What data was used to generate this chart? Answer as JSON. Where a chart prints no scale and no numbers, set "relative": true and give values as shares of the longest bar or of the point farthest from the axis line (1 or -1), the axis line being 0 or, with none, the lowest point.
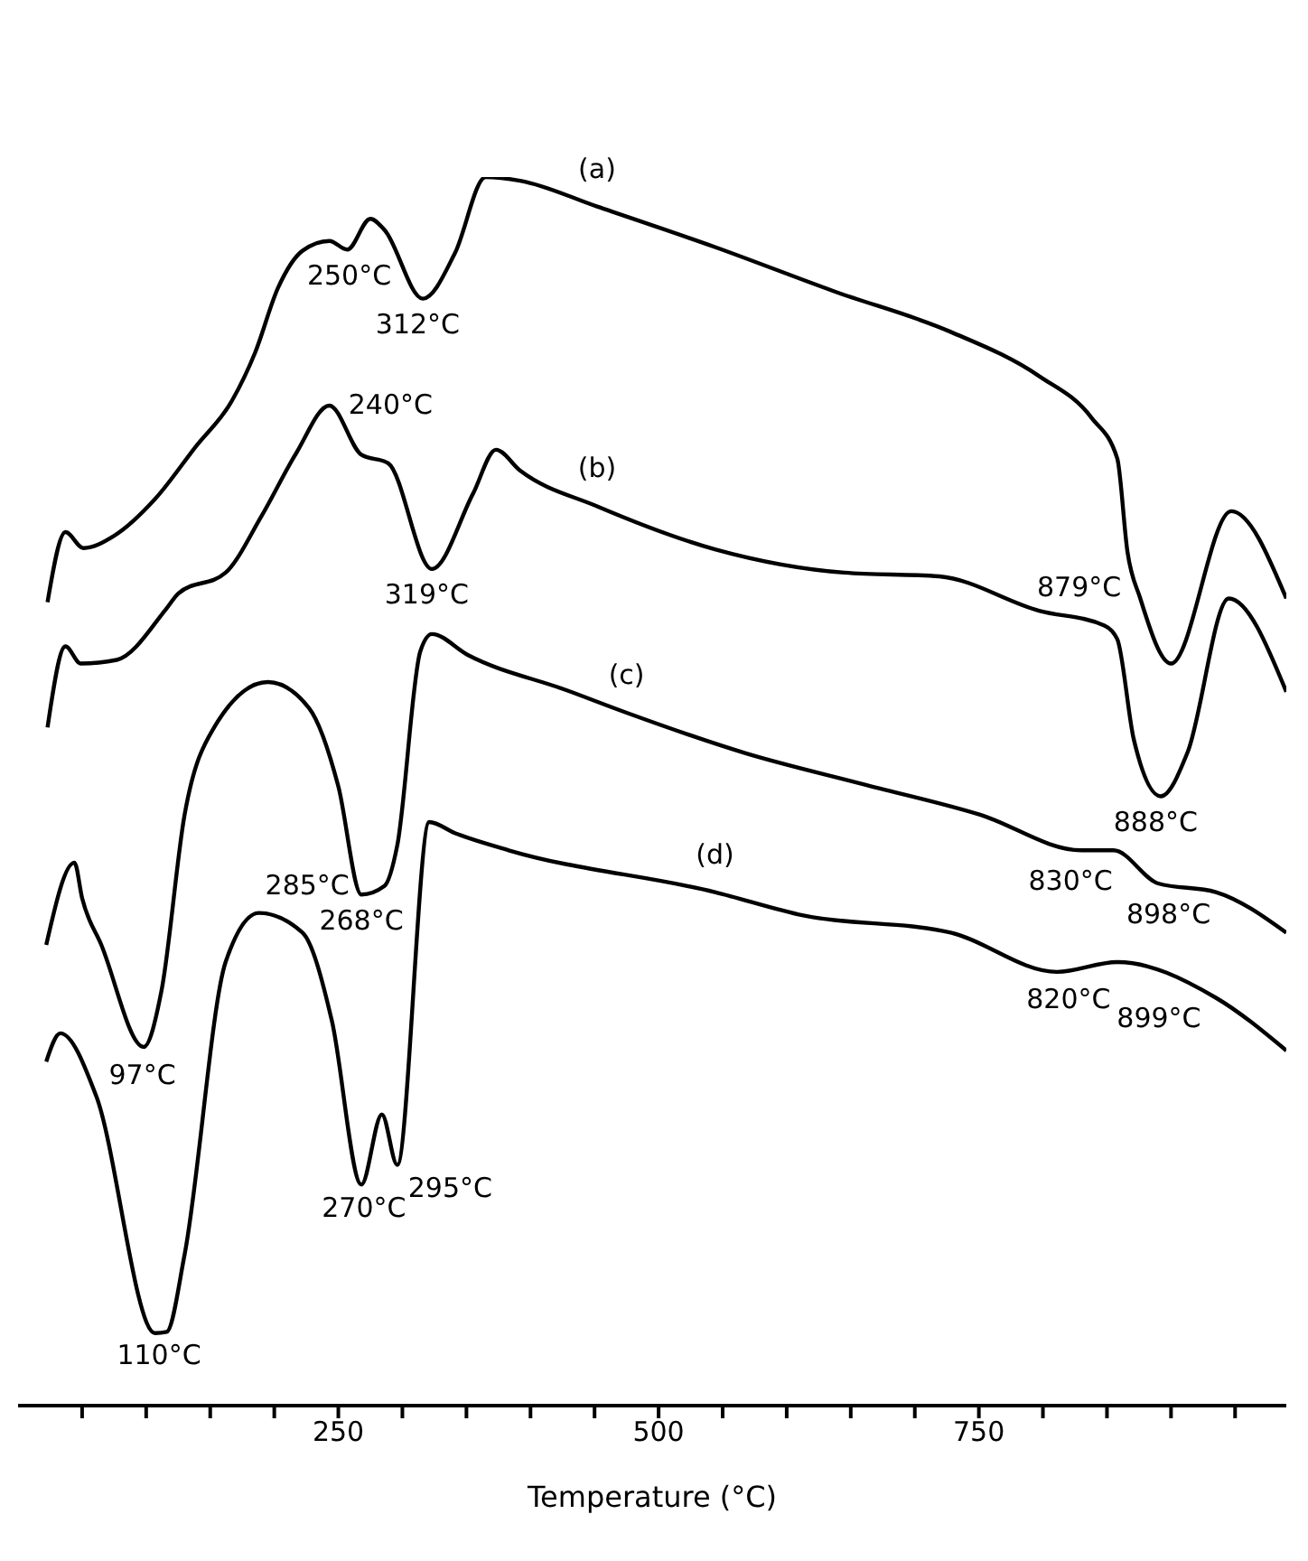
{
  "chart_data": {
    "type": "line",
    "relative": true,
    "xlabel": "Temperature (°C)",
    "xlim": [
      0,
      990
    ],
    "xticks": [
      {
        "value": 50,
        "label": null
      },
      {
        "value": 100,
        "label": null
      },
      {
        "value": 150,
        "label": null
      },
      {
        "value": 200,
        "label": null
      },
      250,
      {
        "value": 300,
        "label": null
      },
      {
        "value": 350,
        "label": null
      },
      {
        "value": 400,
        "label": null
      },
      {
        "value": 450,
        "label": null
      },
      500,
      {
        "value": 550,
        "label": null
      },
      {
        "value": 600,
        "label": null
      },
      {
        "value": 650,
        "label": null
      },
      {
        "value": 700,
        "label": null
      },
      750,
      {
        "value": 800,
        "label": null
      },
      {
        "value": 850,
        "label": null
      },
      {
        "value": 900,
        "label": null
      },
      {
        "value": 950,
        "label": null
      }
    ],
    "legend": false,
    "grid": false,
    "marker": "none",
    "line_style": "solid",
    "series": [
      {
        "name": "(a)",
        "color": "#000000",
        "x": [
          23,
          37,
          51,
          75,
          107,
          139,
          167,
          185,
          203,
          222,
          243,
          257,
          275,
          286,
          316,
          341,
          365,
          392,
          452,
          544,
          637,
          728,
          797,
          838,
          858,
          866,
          876,
          900,
          947,
          990
        ],
        "values": [
          0.654,
          0.711,
          0.698,
          0.708,
          0.738,
          0.781,
          0.818,
          0.857,
          0.91,
          0.94,
          0.948,
          0.941,
          0.966,
          0.957,
          0.901,
          0.938,
          1,
          0.997,
          0.976,
          0.943,
          0.907,
          0.874,
          0.838,
          0.804,
          0.771,
          0.695,
          0.657,
          0.604,
          0.728,
          0.657
        ]
      },
      {
        "name": "(b)",
        "color": "#000000",
        "x": [
          23,
          37,
          49,
          77,
          116,
          125,
          162,
          190,
          217,
          243,
          268,
          289,
          323,
          355,
          373,
          392,
          452,
          544,
          645,
          719,
          797,
          848,
          858,
          871,
          892,
          913,
          945,
          990
        ],
        "values": [
          0.552,
          0.618,
          0.604,
          0.607,
          0.649,
          0.661,
          0.678,
          0.724,
          0.775,
          0.814,
          0.774,
          0.767,
          0.681,
          0.742,
          0.778,
          0.761,
          0.732,
          0.697,
          0.678,
          0.675,
          0.647,
          0.635,
          0.624,
          0.542,
          0.496,
          0.532,
          0.657,
          0.581
        ]
      },
      {
        "name": "(c)",
        "color": "#000000",
        "x": [
          22,
          44,
          50,
          65,
          98,
          112,
          130,
          153,
          195,
          227,
          250,
          268,
          286,
          296,
          314,
          323,
          351,
          429,
          475,
          568,
          659,
          751,
          830,
          855,
          890,
          935,
          990
        ],
        "values": [
          0.375,
          0.442,
          0.413,
          0.375,
          0.292,
          0.338,
          0.481,
          0.552,
          0.589,
          0.568,
          0.504,
          0.416,
          0.423,
          0.456,
          0.614,
          0.628,
          0.611,
          0.582,
          0.564,
          0.531,
          0.506,
          0.481,
          0.452,
          0.452,
          0.425,
          0.418,
          0.385
        ]
      },
      {
        "name": "(d)",
        "color": "#000000",
        "x": [
          22,
          33,
          61,
          107,
          116,
          130,
          162,
          188,
          222,
          245,
          268,
          284,
          296,
          321,
          341,
          383,
          544,
          613,
          728,
          811,
          858,
          935,
          990
        ],
        "values": [
          0.28,
          0.303,
          0.252,
          0.059,
          0.06,
          0.123,
          0.361,
          0.401,
          0.385,
          0.313,
          0.18,
          0.237,
          0.196,
          0.475,
          0.466,
          0.452,
          0.418,
          0.399,
          0.385,
          0.353,
          0.361,
          0.332,
          0.289
        ]
      }
    ],
    "annotations": [
      {
        "text": "250°C",
        "x": 250,
        "y": 0.945
      },
      {
        "text": "312°C",
        "x": 312,
        "y": 0.905
      },
      {
        "text": "240°C",
        "x": 240,
        "y": 0.81
      },
      {
        "text": "319°C",
        "x": 319,
        "y": 0.685
      },
      {
        "text": "879°C",
        "x": 879,
        "y": 0.65
      },
      {
        "text": "888°C",
        "x": 888,
        "y": 0.5
      },
      {
        "text": "268°C",
        "x": 268,
        "y": 0.42
      },
      {
        "text": "285°C",
        "x": 285,
        "y": 0.425
      },
      {
        "text": "97°C",
        "x": 97,
        "y": 0.3
      },
      {
        "text": "830°C",
        "x": 830,
        "y": 0.452
      },
      {
        "text": "898°C",
        "x": 898,
        "y": 0.425
      },
      {
        "text": "820°C",
        "x": 820,
        "y": 0.35
      },
      {
        "text": "899°C",
        "x": 899,
        "y": 0.346
      },
      {
        "text": "110°C",
        "x": 110,
        "y": 0.06
      },
      {
        "text": "270°C",
        "x": 270,
        "y": 0.18
      },
      {
        "text": "295°C",
        "x": 295,
        "y": 0.196
      }
    ]
  }
}
